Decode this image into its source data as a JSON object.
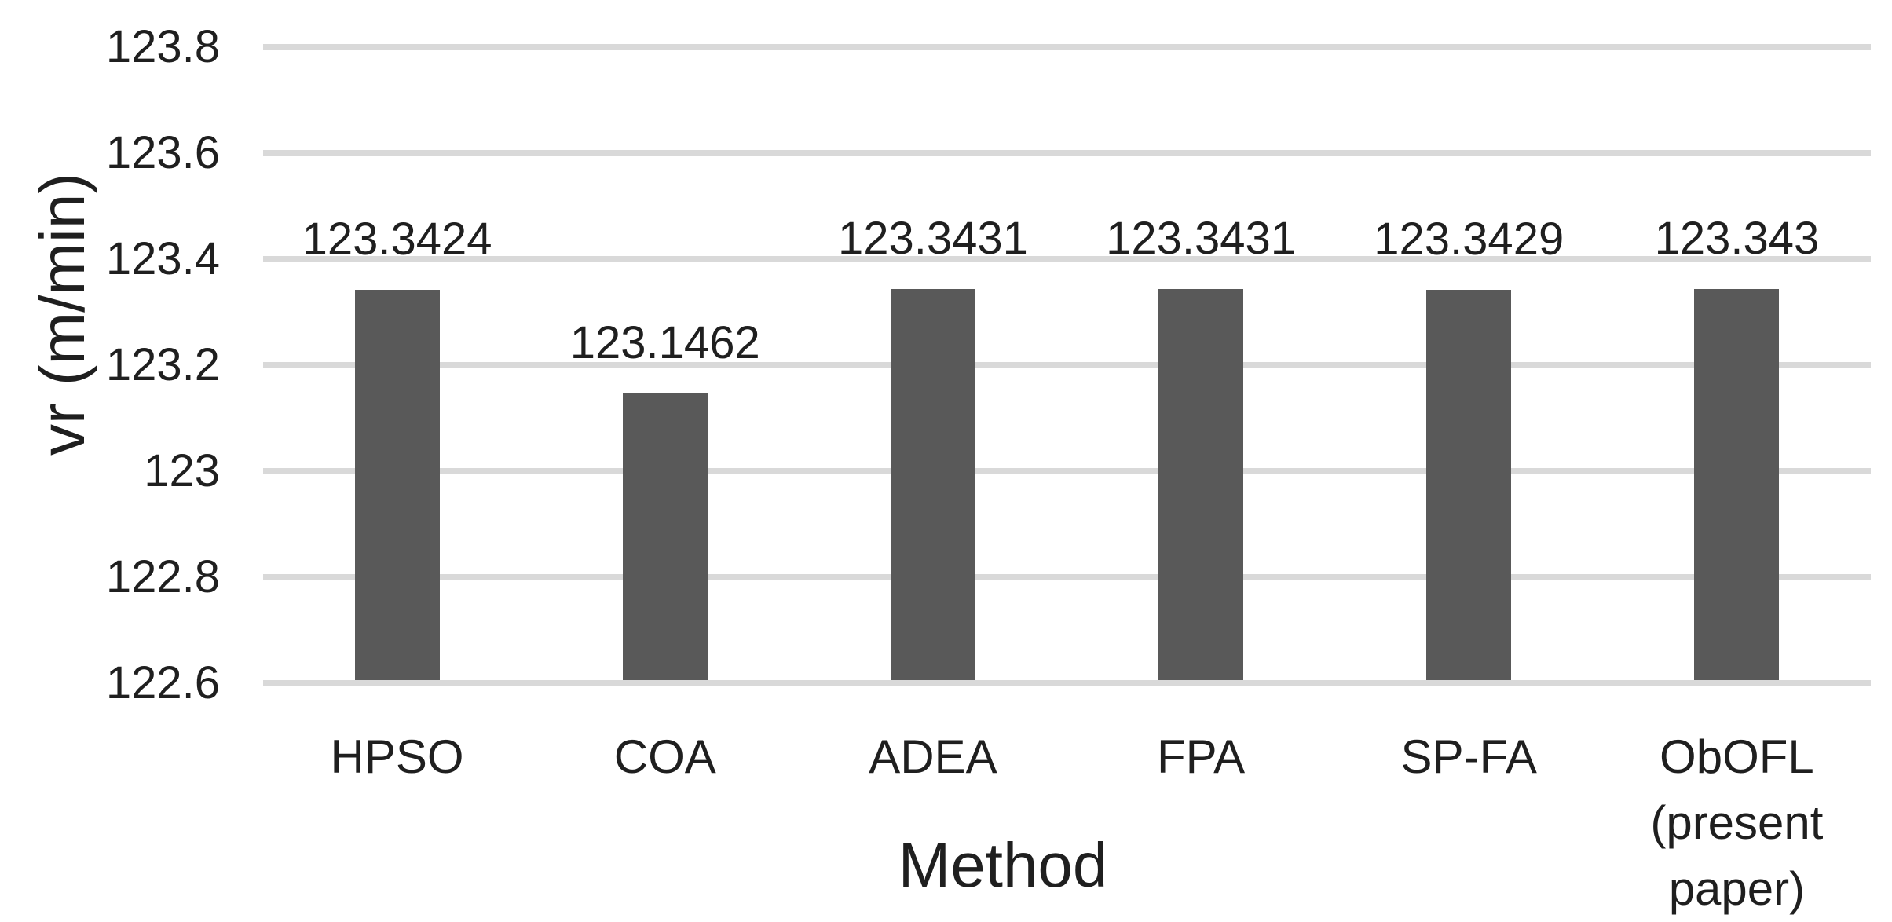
{
  "chart_data": {
    "type": "bar",
    "title": "",
    "xlabel": "Method",
    "ylabel": "vr (m/min)",
    "categories": [
      "HPSO",
      "COA",
      "ADEA",
      "FPA",
      "SP-FA",
      "ObOFL (present paper)"
    ],
    "values": [
      123.3424,
      123.1462,
      123.3431,
      123.3431,
      123.3429,
      123.343
    ],
    "value_labels": [
      "123.3424",
      "123.1462",
      "123.3431",
      "123.3431",
      "123.3429",
      "123.343"
    ],
    "ylim": [
      122.6,
      123.8
    ],
    "ytick_step": 0.2,
    "ytick_labels": [
      "122.6",
      "122.8",
      "123",
      "123.2",
      "123.4",
      "123.6",
      "123.8"
    ],
    "grid": true,
    "legend_position": "none",
    "colors": {
      "bar": "#595959",
      "gridline": "#D9D9D9",
      "axis_line": "#D9D9D9",
      "text": "#1f1f1f",
      "background": "#FFFFFF"
    }
  }
}
